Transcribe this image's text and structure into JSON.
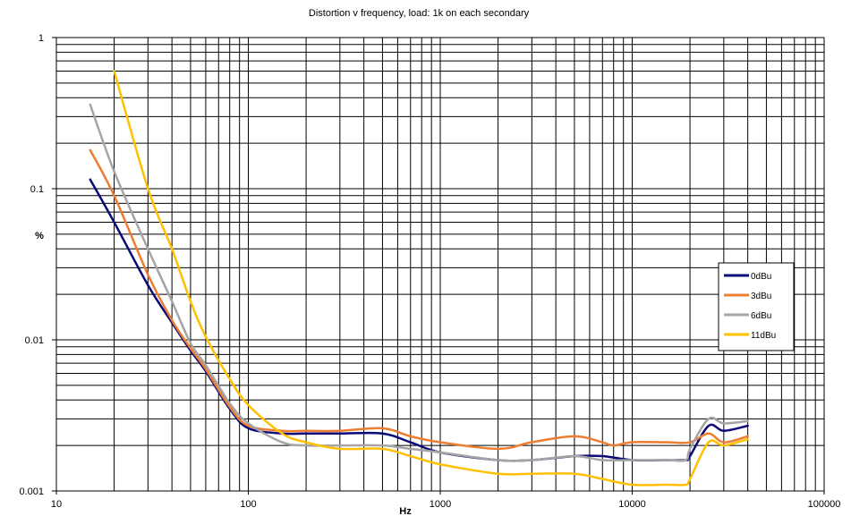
{
  "chart_data": {
    "type": "line",
    "title": "Distortion v frequency, load: 1k on each secondary",
    "xlabel": "Hz",
    "ylabel": "%",
    "x_scale": "log",
    "y_scale": "log",
    "xlim": [
      10,
      100000
    ],
    "ylim": [
      0.001,
      1
    ],
    "x_ticks": [
      "10",
      "100",
      "1000",
      "10000",
      "100000"
    ],
    "y_ticks": [
      "1",
      "0.1",
      "0.01",
      "0.001"
    ],
    "grid": true,
    "legend_position": "right",
    "series": [
      {
        "name": "0dBu",
        "color": "#0a0a78",
        "points": [
          [
            15,
            0.115
          ],
          [
            20,
            0.06
          ],
          [
            30,
            0.023
          ],
          [
            40,
            0.013
          ],
          [
            50,
            0.0085
          ],
          [
            60,
            0.0062
          ],
          [
            80,
            0.0035
          ],
          [
            100,
            0.0026
          ],
          [
            150,
            0.0024
          ],
          [
            200,
            0.0024
          ],
          [
            300,
            0.0024
          ],
          [
            500,
            0.0024
          ],
          [
            700,
            0.0021
          ],
          [
            1000,
            0.0018
          ],
          [
            2000,
            0.0016
          ],
          [
            3000,
            0.0016
          ],
          [
            5000,
            0.0017
          ],
          [
            7000,
            0.0017
          ],
          [
            10000,
            0.0016
          ],
          [
            15000,
            0.0016
          ],
          [
            19000,
            0.0016
          ],
          [
            20000,
            0.0017
          ],
          [
            25000,
            0.0027
          ],
          [
            30000,
            0.0025
          ],
          [
            40000,
            0.0027
          ]
        ]
      },
      {
        "name": "3dBu",
        "color": "#ed7d31",
        "points": [
          [
            15,
            0.18
          ],
          [
            20,
            0.09
          ],
          [
            30,
            0.027
          ],
          [
            40,
            0.0135
          ],
          [
            50,
            0.0088
          ],
          [
            60,
            0.0064
          ],
          [
            80,
            0.0036
          ],
          [
            100,
            0.0027
          ],
          [
            150,
            0.0025
          ],
          [
            200,
            0.0025
          ],
          [
            300,
            0.0025
          ],
          [
            500,
            0.0026
          ],
          [
            700,
            0.0023
          ],
          [
            1000,
            0.0021
          ],
          [
            2000,
            0.0019
          ],
          [
            3000,
            0.0021
          ],
          [
            5000,
            0.0023
          ],
          [
            7000,
            0.0021
          ],
          [
            8000,
            0.002
          ],
          [
            10000,
            0.0021
          ],
          [
            15000,
            0.0021
          ],
          [
            20000,
            0.0021
          ],
          [
            25000,
            0.0024
          ],
          [
            30000,
            0.0021
          ],
          [
            40000,
            0.0023
          ]
        ]
      },
      {
        "name": "6dBu",
        "color": "#a5a5a5",
        "points": [
          [
            15,
            0.36
          ],
          [
            20,
            0.13
          ],
          [
            30,
            0.04
          ],
          [
            40,
            0.018
          ],
          [
            50,
            0.0095
          ],
          [
            60,
            0.0068
          ],
          [
            80,
            0.0038
          ],
          [
            100,
            0.0028
          ],
          [
            150,
            0.0021
          ],
          [
            200,
            0.002
          ],
          [
            300,
            0.002
          ],
          [
            500,
            0.002
          ],
          [
            700,
            0.0019
          ],
          [
            1000,
            0.0018
          ],
          [
            2000,
            0.0016
          ],
          [
            3000,
            0.0016
          ],
          [
            5000,
            0.0017
          ],
          [
            7000,
            0.0016
          ],
          [
            10000,
            0.0016
          ],
          [
            15000,
            0.0016
          ],
          [
            19000,
            0.0016
          ],
          [
            20000,
            0.0019
          ],
          [
            25000,
            0.003
          ],
          [
            30000,
            0.0028
          ],
          [
            40000,
            0.0029
          ]
        ]
      },
      {
        "name": "11dBu",
        "color": "#ffc000",
        "points": [
          [
            20,
            0.6
          ],
          [
            30,
            0.1
          ],
          [
            40,
            0.04
          ],
          [
            50,
            0.018
          ],
          [
            60,
            0.0105
          ],
          [
            80,
            0.0055
          ],
          [
            100,
            0.0037
          ],
          [
            150,
            0.0024
          ],
          [
            200,
            0.0021
          ],
          [
            300,
            0.0019
          ],
          [
            500,
            0.0019
          ],
          [
            700,
            0.0017
          ],
          [
            1000,
            0.0015
          ],
          [
            2000,
            0.0013
          ],
          [
            3000,
            0.0013
          ],
          [
            5000,
            0.0013
          ],
          [
            7000,
            0.0012
          ],
          [
            10000,
            0.0011
          ],
          [
            15000,
            0.0011
          ],
          [
            19000,
            0.0011
          ],
          [
            20000,
            0.0012
          ],
          [
            25000,
            0.0021
          ],
          [
            30000,
            0.002
          ],
          [
            40000,
            0.0022
          ]
        ]
      }
    ]
  }
}
